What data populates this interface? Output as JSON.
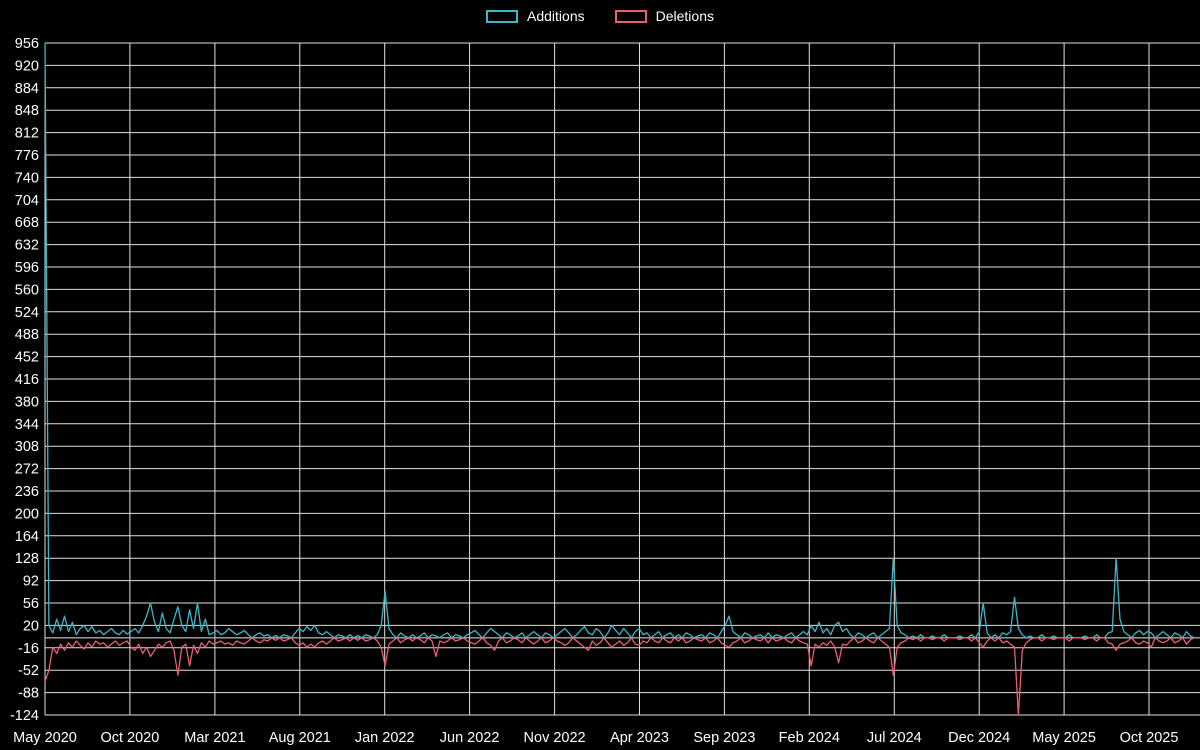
{
  "legend": {
    "position": "top-center",
    "items": [
      {
        "label": "Additions",
        "color": "#3db6c6"
      },
      {
        "label": "Deletions",
        "color": "#ec5f6f"
      }
    ]
  },
  "chart_data": {
    "type": "line",
    "title": "",
    "xlabel": "",
    "ylabel": "",
    "grid": true,
    "background": "#000000",
    "grid_color": "#e1e1e1",
    "zero_line_color": "#aaaaaa",
    "text_color": "#ffffff",
    "ylim": [
      -124,
      956
    ],
    "y_ticks": [
      956,
      920,
      884,
      848,
      812,
      776,
      740,
      704,
      668,
      632,
      596,
      560,
      524,
      488,
      452,
      416,
      380,
      344,
      308,
      272,
      236,
      200,
      164,
      128,
      92,
      56,
      20,
      -16,
      -52,
      -88,
      -124
    ],
    "x_tick_labels": [
      "May 2020",
      "Oct 2020",
      "Mar 2021",
      "Aug 2021",
      "Jan 2022",
      "Jun 2022",
      "Nov 2022",
      "Apr 2023",
      "Sep 2023",
      "Feb 2024",
      "Jul 2024",
      "Dec 2024",
      "May 2025",
      "Oct 2025"
    ],
    "x_tick_months": [
      0,
      5,
      10,
      15,
      20,
      25,
      30,
      35,
      40,
      45,
      50,
      55,
      60,
      65
    ],
    "total_months": 68,
    "x_unit": "week",
    "weeks_per_month": 4.345,
    "series": [
      {
        "name": "Additions",
        "color": "#3db6c6",
        "values": [
          956,
          20,
          8,
          30,
          12,
          35,
          10,
          25,
          5,
          15,
          20,
          10,
          18,
          8,
          12,
          5,
          10,
          15,
          8,
          5,
          12,
          6,
          10,
          15,
          8,
          20,
          35,
          56,
          25,
          10,
          40,
          15,
          8,
          30,
          50,
          20,
          10,
          45,
          15,
          56,
          10,
          30,
          5,
          8,
          12,
          5,
          8,
          15,
          10,
          5,
          8,
          12,
          5,
          0,
          5,
          8,
          3,
          5,
          0,
          4,
          0,
          5,
          3,
          0,
          8,
          15,
          10,
          18,
          12,
          20,
          8,
          5,
          10,
          5,
          0,
          5,
          3,
          0,
          5,
          0,
          4,
          0,
          5,
          3,
          0,
          5,
          20,
          75,
          15,
          5,
          0,
          8,
          3,
          0,
          5,
          0,
          3,
          8,
          0,
          5,
          3,
          0,
          5,
          8,
          0,
          5,
          3,
          0,
          5,
          8,
          12,
          5,
          0,
          8,
          15,
          10,
          5,
          0,
          8,
          5,
          0,
          3,
          8,
          0,
          5,
          10,
          5,
          0,
          8,
          5,
          0,
          5,
          10,
          15,
          8,
          0,
          5,
          12,
          18,
          8,
          5,
          15,
          10,
          0,
          8,
          20,
          12,
          5,
          15,
          8,
          0,
          10,
          15,
          5,
          8,
          0,
          5,
          10,
          0,
          5,
          8,
          0,
          5,
          0,
          8,
          5,
          0,
          3,
          5,
          0,
          8,
          5,
          0,
          10,
          20,
          35,
          10,
          5,
          0,
          8,
          5,
          0,
          3,
          5,
          0,
          8,
          0,
          5,
          3,
          0,
          5,
          8,
          0,
          5,
          10,
          5,
          20,
          10,
          25,
          8,
          15,
          5,
          20,
          25,
          10,
          15,
          5,
          0,
          8,
          5,
          0,
          5,
          8,
          0,
          5,
          10,
          15,
          128,
          20,
          8,
          5,
          0,
          3,
          0,
          5,
          0,
          0,
          3,
          0,
          0,
          5,
          0,
          0,
          0,
          3,
          0,
          0,
          5,
          0,
          10,
          56,
          8,
          0,
          5,
          0,
          8,
          5,
          10,
          65,
          15,
          5,
          0,
          3,
          0,
          0,
          5,
          0,
          0,
          3,
          0,
          0,
          0,
          5,
          0,
          0,
          0,
          3,
          0,
          0,
          5,
          0,
          0,
          8,
          10,
          128,
          30,
          10,
          5,
          0,
          8,
          12,
          5,
          10,
          8,
          0,
          5,
          10,
          5,
          0,
          8,
          5,
          0,
          10,
          3,
          0
        ]
      },
      {
        "name": "Deletions",
        "color": "#ec5f6f",
        "values": [
          -70,
          -52,
          -15,
          -25,
          -10,
          -20,
          -8,
          -15,
          -5,
          -12,
          -18,
          -8,
          -15,
          -5,
          -10,
          -8,
          -15,
          -10,
          -5,
          -12,
          -8,
          -5,
          -15,
          -20,
          -10,
          -25,
          -15,
          -30,
          -20,
          -10,
          -15,
          -8,
          -5,
          -20,
          -60,
          -15,
          -10,
          -45,
          -12,
          -25,
          -8,
          -15,
          -5,
          -10,
          -8,
          -5,
          -10,
          -8,
          -12,
          -5,
          -8,
          -10,
          -5,
          0,
          -5,
          -8,
          -3,
          -5,
          0,
          -4,
          0,
          -5,
          -3,
          0,
          -8,
          -12,
          -8,
          -15,
          -10,
          -15,
          -8,
          -5,
          -10,
          -5,
          0,
          -5,
          -3,
          0,
          -5,
          0,
          -4,
          0,
          -5,
          -3,
          0,
          -5,
          -15,
          -45,
          -10,
          -5,
          0,
          -8,
          -3,
          0,
          -5,
          0,
          -3,
          -8,
          0,
          -5,
          -30,
          -5,
          -8,
          -5,
          0,
          -5,
          -3,
          0,
          -5,
          -8,
          -10,
          -5,
          0,
          -8,
          -12,
          -20,
          -5,
          0,
          -8,
          -5,
          0,
          -3,
          -8,
          0,
          -5,
          -10,
          -5,
          0,
          -8,
          -5,
          0,
          -5,
          -8,
          -12,
          -8,
          0,
          -5,
          -10,
          -15,
          -20,
          -5,
          -12,
          -8,
          0,
          -8,
          -15,
          -10,
          -5,
          -12,
          -8,
          0,
          -10,
          -12,
          -5,
          -8,
          0,
          -5,
          -8,
          0,
          -5,
          -8,
          0,
          -5,
          0,
          -8,
          -5,
          0,
          -3,
          -5,
          0,
          -8,
          -5,
          0,
          -8,
          -12,
          -15,
          -8,
          -5,
          0,
          -8,
          -5,
          0,
          -3,
          -5,
          0,
          -8,
          0,
          -5,
          -3,
          0,
          -5,
          -8,
          0,
          -5,
          -8,
          -10,
          -45,
          -10,
          -15,
          -8,
          -12,
          -5,
          -15,
          -40,
          -10,
          -12,
          -5,
          0,
          -8,
          -5,
          0,
          -5,
          -8,
          0,
          -5,
          -10,
          -15,
          -60,
          -15,
          -8,
          -5,
          0,
          -3,
          0,
          -5,
          0,
          0,
          -3,
          0,
          0,
          -5,
          0,
          0,
          0,
          -3,
          0,
          0,
          -5,
          0,
          -8,
          -15,
          -5,
          0,
          -5,
          0,
          -8,
          -5,
          -10,
          -15,
          -124,
          -20,
          -8,
          -3,
          0,
          0,
          -5,
          0,
          0,
          -3,
          0,
          0,
          0,
          -5,
          0,
          0,
          0,
          -3,
          0,
          0,
          -5,
          0,
          0,
          -8,
          -10,
          -20,
          -10,
          -8,
          -5,
          0,
          -8,
          -10,
          -5,
          -8,
          -15,
          0,
          -5,
          -8,
          -5,
          0,
          -8,
          -5,
          0,
          -10,
          -3,
          0
        ]
      }
    ]
  }
}
